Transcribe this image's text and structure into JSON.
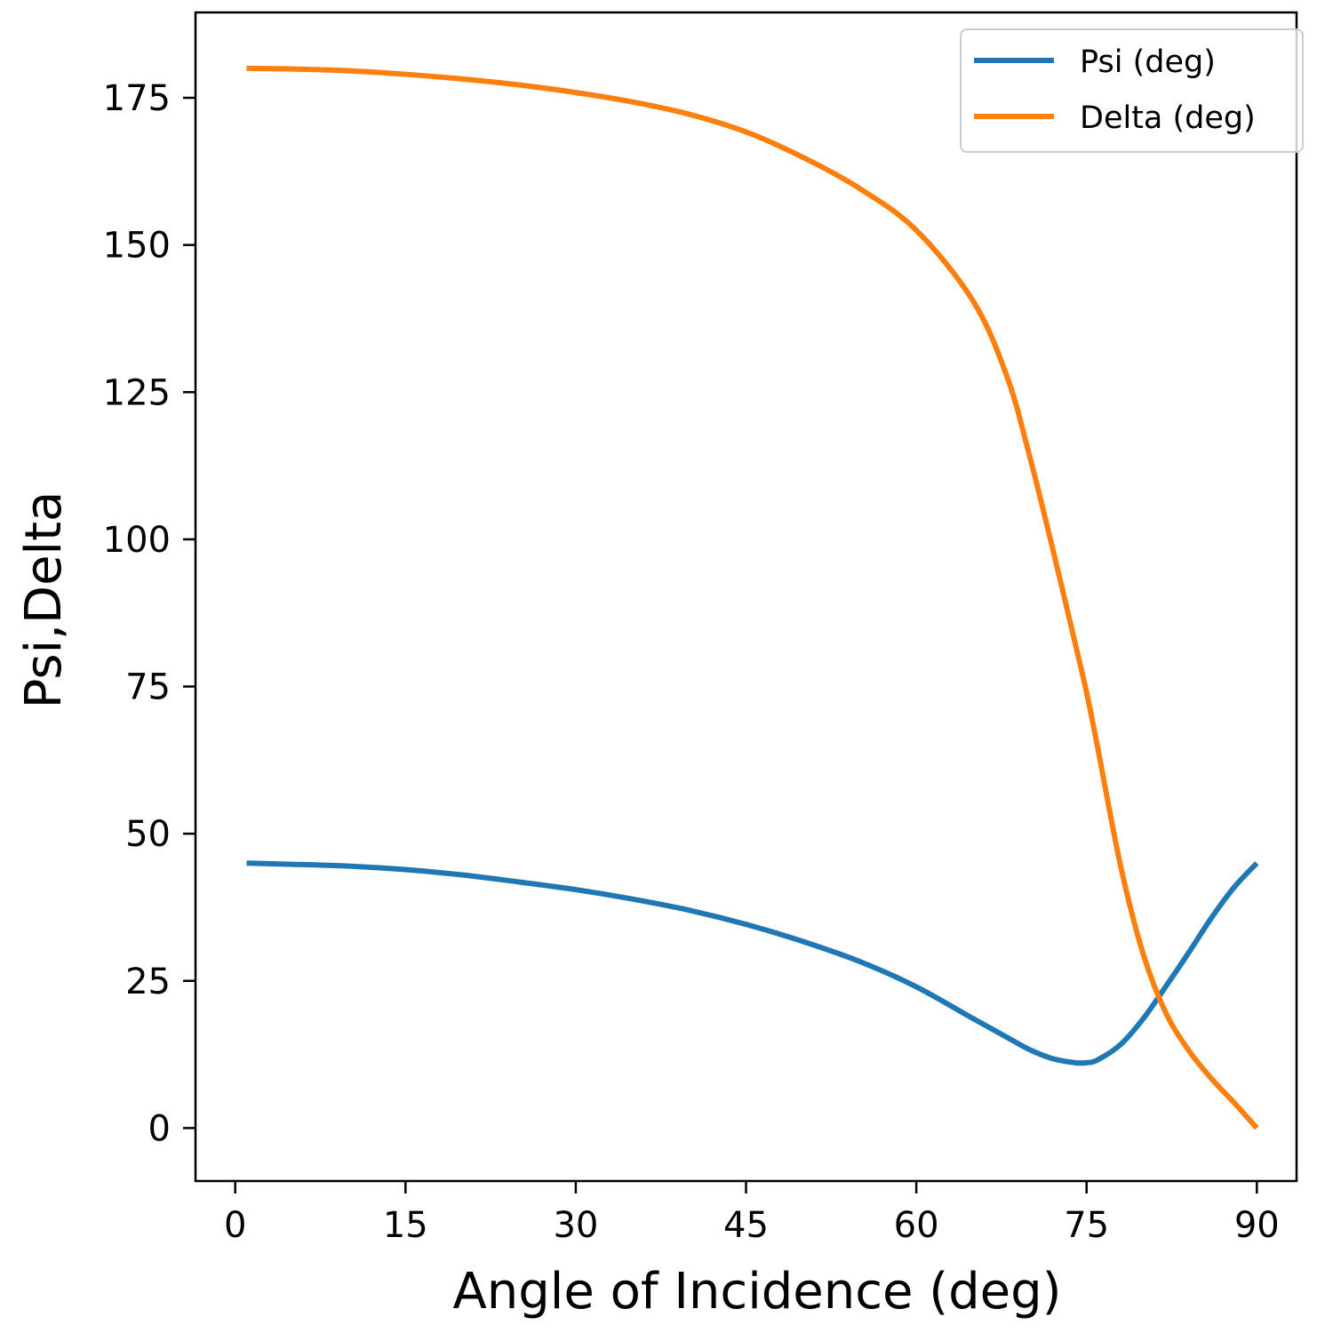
{
  "chart_data": {
    "type": "line",
    "title": "",
    "xlabel": "Angle of Incidence (deg)",
    "ylabel": "Psi,Delta",
    "xlim": [
      -3.5,
      93.5
    ],
    "ylim": [
      -9,
      189.5
    ],
    "xticks": [
      0,
      15,
      30,
      45,
      60,
      75,
      90
    ],
    "xtick_labels": [
      "0",
      "15",
      "30",
      "45",
      "60",
      "75",
      "90"
    ],
    "yticks": [
      0,
      25,
      50,
      75,
      100,
      125,
      150,
      175
    ],
    "ytick_labels": [
      "0",
      "25",
      "50",
      "75",
      "100",
      "125",
      "150",
      "175"
    ],
    "grid": false,
    "legend_position": "top-right",
    "x": [
      1,
      5,
      10,
      15,
      20,
      25,
      30,
      35,
      40,
      45,
      50,
      55,
      60,
      65,
      68,
      70,
      72,
      74,
      75,
      76,
      78,
      80,
      82,
      84,
      86,
      88,
      90
    ],
    "series": [
      {
        "name": "Psi (deg)",
        "color": "#1f77b4",
        "values": [
          45,
          44.8,
          44.5,
          43.9,
          43.0,
          41.8,
          40.5,
          38.9,
          37.0,
          34.6,
          31.7,
          28.3,
          24.0,
          18.6,
          15.4,
          13.3,
          11.8,
          11.1,
          11.1,
          11.6,
          14.2,
          18.6,
          24.1,
          29.8,
          35.7,
          40.9,
          45
        ]
      },
      {
        "name": "Delta (deg)",
        "color": "#ff7f0e",
        "values": [
          180,
          179.9,
          179.6,
          179.0,
          178.2,
          177.2,
          175.9,
          174.3,
          172.2,
          169.2,
          164.9,
          159.6,
          152.5,
          140.5,
          127.6,
          114.0,
          98.5,
          82.3,
          74.0,
          64.4,
          44.5,
          29.5,
          19.5,
          13.2,
          8.4,
          4.3,
          0
        ]
      }
    ]
  }
}
